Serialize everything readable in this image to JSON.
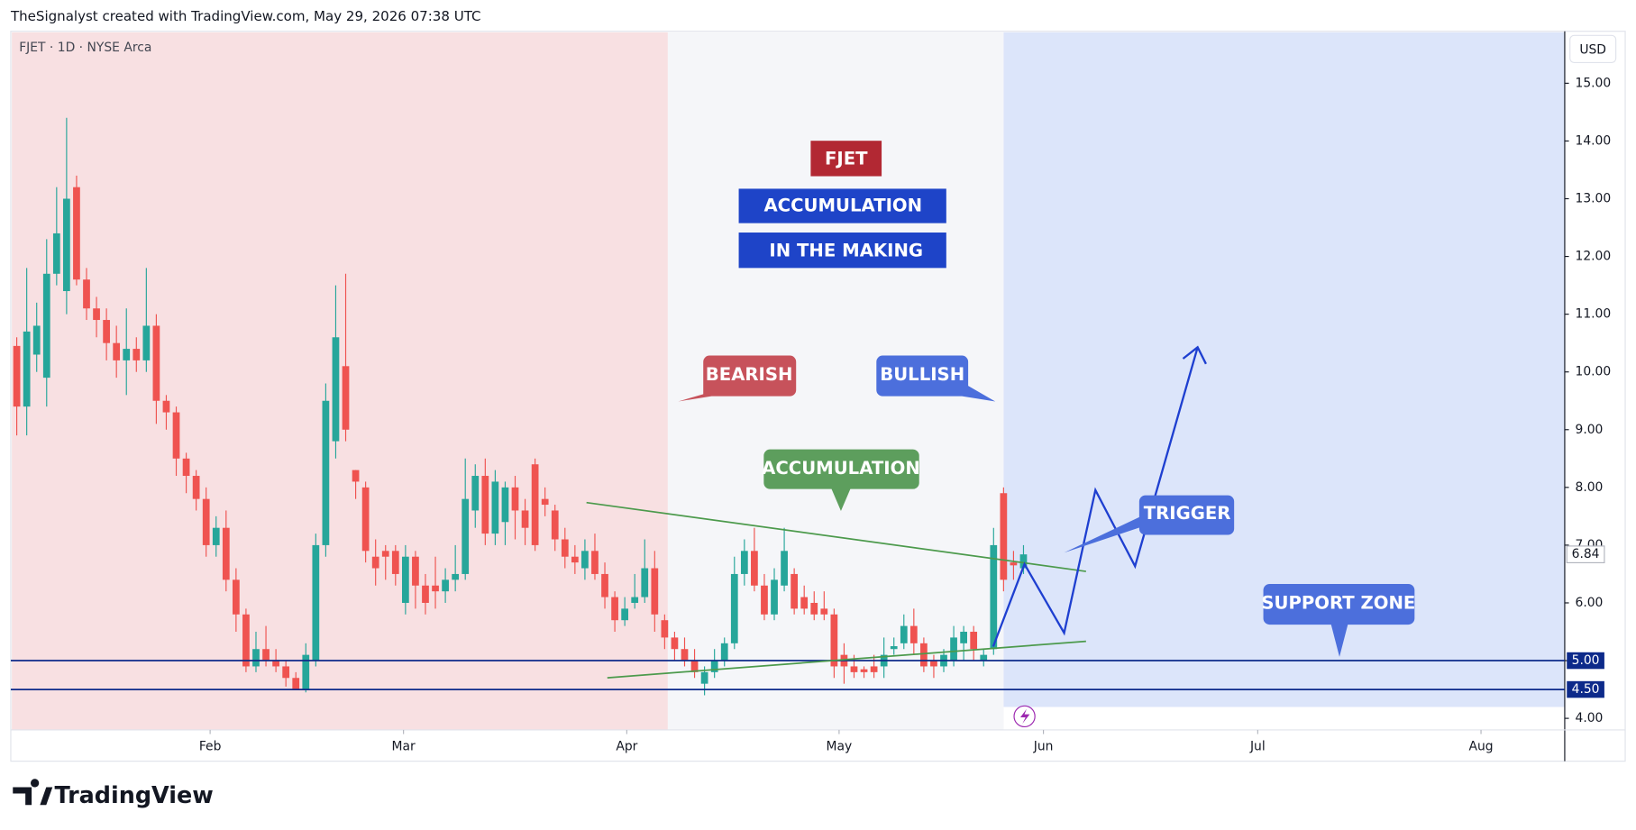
{
  "header": "TheSignalyst created with TradingView.com, May 29, 2026 07:38 UTC",
  "logo": "TradingView",
  "chart_data": {
    "type": "candlestick",
    "symbol": "FJET · 1D · NYSE Arca",
    "currency": "USD",
    "up_color": "#26a69a",
    "down_color": "#ef5350",
    "ylim": [
      3.8,
      15.9
    ],
    "yticks": [
      {
        "value": 4,
        "label": "4.00"
      },
      {
        "value": 5,
        "label": "5.00"
      },
      {
        "value": 6,
        "label": "6.00"
      },
      {
        "value": 7,
        "label": "7.00"
      },
      {
        "value": 8,
        "label": "8.00"
      },
      {
        "value": 9,
        "label": "9.00"
      },
      {
        "value": 10,
        "label": "10.00"
      },
      {
        "value": 11,
        "label": "11.00"
      },
      {
        "value": 12,
        "label": "12.00"
      },
      {
        "value": 13,
        "label": "13.00"
      },
      {
        "value": 14,
        "label": "14.00"
      },
      {
        "value": 15,
        "label": "15.00"
      }
    ],
    "xlim": [
      -0.6,
      155.3
    ],
    "xticks": [
      {
        "value": 19.4,
        "label": "Feb"
      },
      {
        "value": 38.8,
        "label": "Mar"
      },
      {
        "value": 61.2,
        "label": "Apr"
      },
      {
        "value": 82.5,
        "label": "May"
      },
      {
        "value": 103,
        "label": "Jun"
      },
      {
        "value": 124.5,
        "label": "Jul"
      },
      {
        "value": 146.9,
        "label": "Aug"
      }
    ],
    "levels": [
      {
        "value": 5,
        "label": "5.00"
      },
      {
        "value": 4.5,
        "label": "4.50"
      }
    ],
    "last_price": {
      "value": 6.84,
      "label": "6.84"
    },
    "ohlc": [
      [
        10.45,
        10.6,
        8.9,
        9.4
      ],
      [
        9.4,
        11.8,
        8.9,
        10.7
      ],
      [
        10.3,
        11.2,
        10.0,
        10.8
      ],
      [
        9.9,
        12.3,
        9.4,
        11.7
      ],
      [
        11.7,
        13.2,
        11.5,
        12.4
      ],
      [
        11.4,
        14.4,
        11.0,
        13.0
      ],
      [
        13.2,
        13.4,
        11.5,
        11.6
      ],
      [
        11.6,
        11.8,
        10.9,
        11.1
      ],
      [
        11.1,
        11.3,
        10.6,
        10.9
      ],
      [
        10.9,
        11.1,
        10.2,
        10.5
      ],
      [
        10.5,
        10.8,
        9.9,
        10.2
      ],
      [
        10.2,
        11.1,
        9.6,
        10.4
      ],
      [
        10.4,
        10.6,
        10.0,
        10.2
      ],
      [
        10.2,
        11.8,
        10.0,
        10.8
      ],
      [
        10.8,
        11.0,
        9.1,
        9.5
      ],
      [
        9.5,
        9.6,
        9.0,
        9.3
      ],
      [
        9.3,
        9.4,
        8.2,
        8.5
      ],
      [
        8.5,
        8.6,
        7.9,
        8.2
      ],
      [
        8.2,
        8.3,
        7.6,
        7.8
      ],
      [
        7.8,
        8.0,
        6.8,
        7.0
      ],
      [
        7.0,
        7.5,
        6.8,
        7.3
      ],
      [
        7.3,
        7.6,
        6.2,
        6.4
      ],
      [
        6.4,
        6.6,
        5.5,
        5.8
      ],
      [
        5.8,
        5.9,
        4.8,
        4.9
      ],
      [
        4.9,
        5.5,
        4.8,
        5.2
      ],
      [
        5.2,
        5.6,
        4.9,
        5.0
      ],
      [
        5.0,
        5.2,
        4.8,
        4.9
      ],
      [
        4.9,
        5.0,
        4.55,
        4.7
      ],
      [
        4.7,
        4.8,
        4.5,
        4.5
      ],
      [
        4.5,
        5.3,
        4.45,
        5.1
      ],
      [
        5.0,
        7.2,
        4.9,
        7.0
      ],
      [
        7.0,
        9.8,
        6.8,
        9.5
      ],
      [
        8.8,
        11.5,
        8.5,
        10.6
      ],
      [
        10.1,
        11.7,
        8.8,
        9.0
      ],
      [
        8.3,
        8.3,
        7.8,
        8.1
      ],
      [
        8.0,
        8.1,
        6.7,
        6.9
      ],
      [
        6.8,
        7.1,
        6.3,
        6.6
      ],
      [
        6.9,
        7.0,
        6.4,
        6.8
      ],
      [
        6.9,
        7.0,
        6.3,
        6.5
      ],
      [
        6.0,
        7.0,
        5.8,
        6.8
      ],
      [
        6.8,
        6.9,
        5.9,
        6.3
      ],
      [
        6.3,
        6.5,
        5.8,
        6.0
      ],
      [
        6.3,
        6.8,
        5.9,
        6.2
      ],
      [
        6.2,
        6.6,
        6.0,
        6.4
      ],
      [
        6.4,
        7.0,
        6.2,
        6.5
      ],
      [
        6.5,
        8.5,
        6.4,
        7.8
      ],
      [
        7.6,
        8.4,
        7.3,
        8.2
      ],
      [
        8.2,
        8.5,
        7.0,
        7.2
      ],
      [
        7.2,
        8.3,
        7.0,
        8.1
      ],
      [
        7.4,
        8.1,
        7.0,
        8.0
      ],
      [
        8.0,
        8.2,
        7.1,
        7.6
      ],
      [
        7.6,
        7.8,
        7.0,
        7.3
      ],
      [
        8.4,
        8.5,
        6.9,
        7.0
      ],
      [
        7.8,
        8.0,
        7.5,
        7.7
      ],
      [
        7.6,
        7.7,
        6.9,
        7.1
      ],
      [
        7.1,
        7.3,
        6.6,
        6.8
      ],
      [
        6.8,
        7.0,
        6.5,
        6.7
      ],
      [
        6.6,
        7.1,
        6.4,
        6.9
      ],
      [
        6.9,
        7.2,
        6.4,
        6.5
      ],
      [
        6.5,
        6.7,
        5.9,
        6.1
      ],
      [
        6.1,
        6.2,
        5.5,
        5.7
      ],
      [
        5.7,
        6.1,
        5.6,
        5.9
      ],
      [
        6.0,
        6.5,
        5.9,
        6.1
      ],
      [
        6.1,
        7.1,
        6.0,
        6.6
      ],
      [
        6.6,
        6.9,
        5.5,
        5.8
      ],
      [
        5.7,
        5.8,
        5.2,
        5.4
      ],
      [
        5.4,
        5.5,
        5.0,
        5.2
      ],
      [
        5.2,
        5.4,
        4.9,
        5.0
      ],
      [
        5.0,
        5.2,
        4.7,
        4.8
      ],
      [
        4.6,
        4.9,
        4.4,
        4.8
      ],
      [
        4.8,
        5.2,
        4.7,
        5.0
      ],
      [
        5.0,
        5.4,
        4.9,
        5.3
      ],
      [
        5.3,
        6.8,
        5.2,
        6.5
      ],
      [
        6.5,
        7.1,
        6.3,
        6.9
      ],
      [
        6.9,
        7.3,
        6.2,
        6.3
      ],
      [
        6.3,
        6.5,
        5.7,
        5.8
      ],
      [
        5.8,
        6.6,
        5.7,
        6.4
      ],
      [
        6.3,
        7.3,
        6.2,
        6.9
      ],
      [
        6.5,
        6.6,
        5.8,
        5.9
      ],
      [
        6.1,
        6.3,
        5.8,
        5.9
      ],
      [
        6.0,
        6.2,
        5.7,
        5.8
      ],
      [
        5.9,
        6.2,
        5.7,
        5.8
      ],
      [
        5.8,
        5.9,
        4.7,
        4.9
      ],
      [
        5.1,
        5.3,
        4.6,
        4.9
      ],
      [
        4.9,
        5.1,
        4.7,
        4.8
      ],
      [
        4.85,
        4.9,
        4.7,
        4.8
      ],
      [
        4.9,
        5.1,
        4.7,
        4.8
      ],
      [
        4.9,
        5.4,
        4.7,
        5.1
      ],
      [
        5.2,
        5.4,
        5.1,
        5.25
      ],
      [
        5.3,
        5.8,
        5.2,
        5.6
      ],
      [
        5.6,
        5.9,
        5.1,
        5.3
      ],
      [
        5.3,
        5.4,
        4.8,
        4.9
      ],
      [
        5.0,
        5.1,
        4.7,
        4.9
      ],
      [
        4.9,
        5.2,
        4.8,
        5.1
      ],
      [
        5.0,
        5.6,
        4.9,
        5.4
      ],
      [
        5.3,
        5.6,
        5.0,
        5.5
      ],
      [
        5.5,
        5.6,
        5.0,
        5.2
      ],
      [
        5.0,
        5.2,
        4.9,
        5.1
      ],
      [
        5.2,
        7.3,
        5.1,
        7.0
      ],
      [
        7.9,
        8.0,
        6.2,
        6.4
      ],
      [
        6.7,
        6.9,
        6.4,
        6.65
      ],
      [
        6.6,
        7.0,
        6.5,
        6.84
      ]
    ],
    "annotations": {
      "title_1": "FJET",
      "title_2": "ACCUMULATION",
      "title_3": "IN THE MAKING",
      "bearish": "BEARISH",
      "bullish": "BULLISH",
      "accumulation": "ACCUMULATION",
      "trigger": "TRIGGER",
      "support": "SUPPORT ZONE"
    }
  }
}
